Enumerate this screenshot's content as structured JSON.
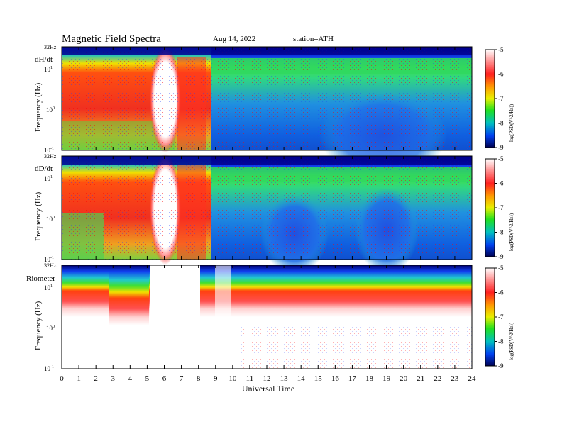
{
  "header": {
    "title": "Magnetic  Field  Spectra",
    "date": "Aug 14, 2022",
    "station": "station=ATH"
  },
  "panels": [
    {
      "label": "dH/dt",
      "ylabel": "Frequency  (Hz)"
    },
    {
      "label": "dD/dt",
      "ylabel": "Frequency  (Hz)"
    },
    {
      "label": "Riometer",
      "ylabel": "Frequency  (Hz)"
    }
  ],
  "colorbar": {
    "label": "log(PSD(V^2/Hz))",
    "ticks": [
      "-5",
      "-6",
      "-7",
      "-8",
      "-9"
    ],
    "colors": [
      "#ffffff",
      "#ff3030",
      "#ff9000",
      "#f0f000",
      "#30e030",
      "#00c8c0",
      "#0060f0",
      "#0000a0",
      "#000050"
    ]
  },
  "chart_data": {
    "type": "heatmap",
    "xlabel": "Universal Time",
    "x_ticks": [
      "0",
      "1",
      "2",
      "3",
      "4",
      "5",
      "6",
      "7",
      "8",
      "9",
      "10",
      "11",
      "12",
      "13",
      "14",
      "15",
      "16",
      "17",
      "18",
      "19",
      "20",
      "21",
      "22",
      "23",
      "24"
    ],
    "xlim": [
      0,
      24
    ],
    "y_scale": "log",
    "y_tick_labels": [
      "32Hz",
      "10^1",
      "10^0",
      "10^-1"
    ],
    "ylim_hz": [
      0.1,
      32
    ],
    "colorbar_range": [
      -9,
      -5
    ],
    "series": [
      {
        "name": "dH/dt"
      },
      {
        "name": "dD/dt"
      },
      {
        "name": "Riometer"
      }
    ]
  }
}
